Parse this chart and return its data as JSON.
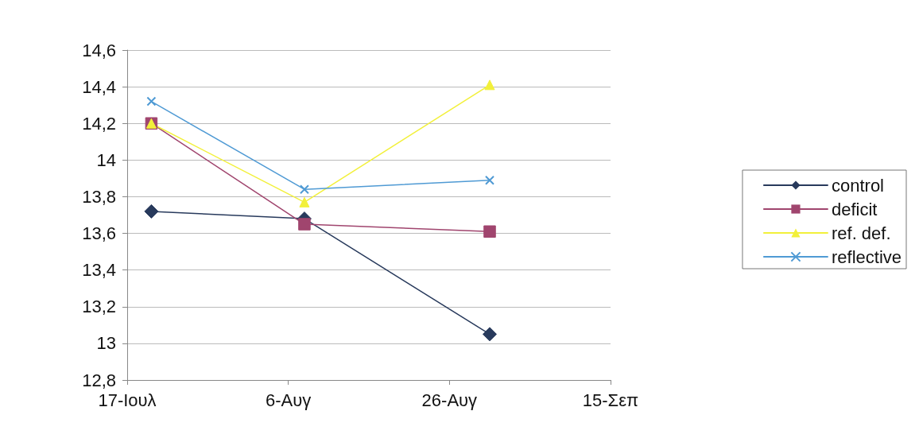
{
  "chart_data": {
    "type": "line",
    "x": [
      "--07-20",
      "--08-08",
      "--08-31"
    ],
    "series": [
      {
        "name": "control",
        "color": "#283a5c",
        "marker": "diamond",
        "values": [
          13.72,
          13.68,
          13.05
        ]
      },
      {
        "name": "deficit",
        "color": "#a0456e",
        "marker": "square",
        "values": [
          14.2,
          13.65,
          13.61
        ]
      },
      {
        "name": "ref. def.",
        "color": "#f2f03a",
        "marker": "triangle",
        "values": [
          14.2,
          13.77,
          14.41
        ]
      },
      {
        "name": "reflective",
        "color": "#4f9ad4",
        "marker": "cross",
        "values": [
          14.32,
          13.84,
          13.89
        ]
      }
    ],
    "xlim": [
      "--07-17",
      "--09-15"
    ],
    "xticks": [
      {
        "value": "--07-17",
        "label": "17-Ιουλ"
      },
      {
        "value": "--08-06",
        "label": "6-Αυγ"
      },
      {
        "value": "--08-26",
        "label": "26-Αυγ"
      },
      {
        "value": "--09-15",
        "label": "15-Σεπ"
      }
    ],
    "ylim": [
      12.8,
      14.6
    ],
    "yticks": [
      {
        "value": 12.8,
        "label": "12,8"
      },
      {
        "value": 13,
        "label": "13"
      },
      {
        "value": 13.2,
        "label": "13,2"
      },
      {
        "value": 13.4,
        "label": "13,4"
      },
      {
        "value": 13.6,
        "label": "13,6"
      },
      {
        "value": 13.8,
        "label": "13,8"
      },
      {
        "value": 14,
        "label": "14"
      },
      {
        "value": 14.2,
        "label": "14,2"
      },
      {
        "value": 14.4,
        "label": "14,4"
      },
      {
        "value": 14.6,
        "label": "14,6"
      }
    ],
    "grid": "y",
    "legend": "right"
  }
}
